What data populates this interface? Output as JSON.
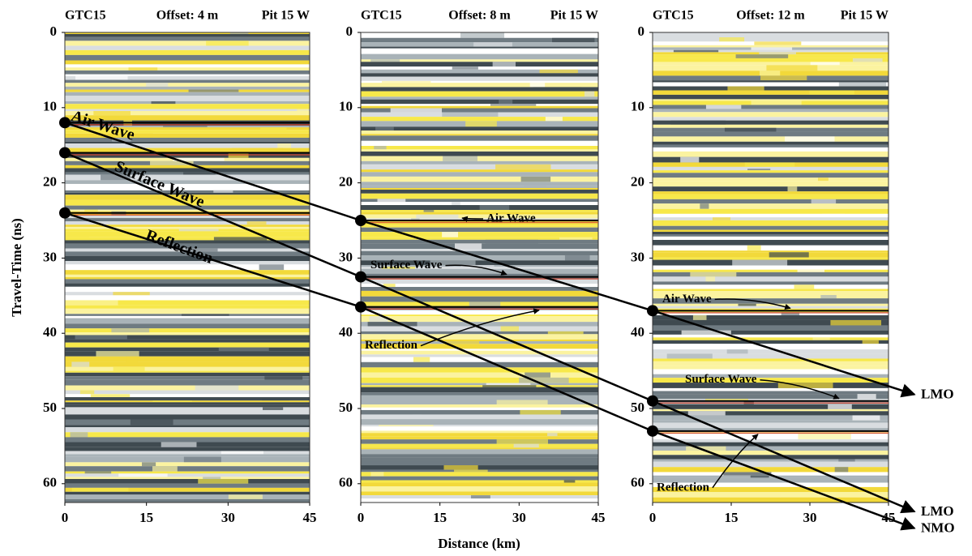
{
  "chart_data": [
    {
      "type": "radargram",
      "labels": [
        "GTC15",
        "Offset: 4 m",
        "Pit 15 W"
      ],
      "ylabel": "Travel-Time (ns)",
      "xlim": [
        0,
        45
      ],
      "xticks": [
        0,
        15,
        30,
        45
      ],
      "ylim": [
        0,
        62.5
      ],
      "yticks": [
        0,
        10,
        20,
        30,
        40,
        50,
        60
      ],
      "events": [
        {
          "name": "Air Wave",
          "time": 12
        },
        {
          "name": "Surface Wave",
          "time": 16
        },
        {
          "name": "Reflection",
          "time": 24
        }
      ]
    },
    {
      "type": "radargram",
      "labels": [
        "GTC15",
        "Offset: 8 m",
        "Pit 15 W"
      ],
      "xlabel": "Distance (km)",
      "xlim": [
        0,
        45
      ],
      "xticks": [
        0,
        15,
        30,
        45
      ],
      "ylim": [
        0,
        62.5
      ],
      "yticks": [
        0,
        10,
        20,
        30,
        40,
        50,
        60
      ],
      "events": [
        {
          "name": "Air Wave",
          "time": 25
        },
        {
          "name": "Surface Wave",
          "time": 32.5
        },
        {
          "name": "Reflection",
          "time": 36.5
        }
      ]
    },
    {
      "type": "radargram",
      "labels": [
        "GTC15",
        "Offset: 12 m",
        "Pit 15 W"
      ],
      "xlim": [
        0,
        45
      ],
      "xticks": [
        0,
        15,
        30,
        45
      ],
      "ylim": [
        0,
        62.5
      ],
      "yticks": [
        0,
        10,
        20,
        30,
        40,
        50,
        60
      ],
      "events": [
        {
          "name": "Air Wave",
          "time": 37
        },
        {
          "name": "Surface Wave",
          "time": 49
        },
        {
          "name": "Reflection",
          "time": 53
        }
      ]
    }
  ],
  "moveouts": [
    "LMO",
    "LMO",
    "NMO"
  ]
}
